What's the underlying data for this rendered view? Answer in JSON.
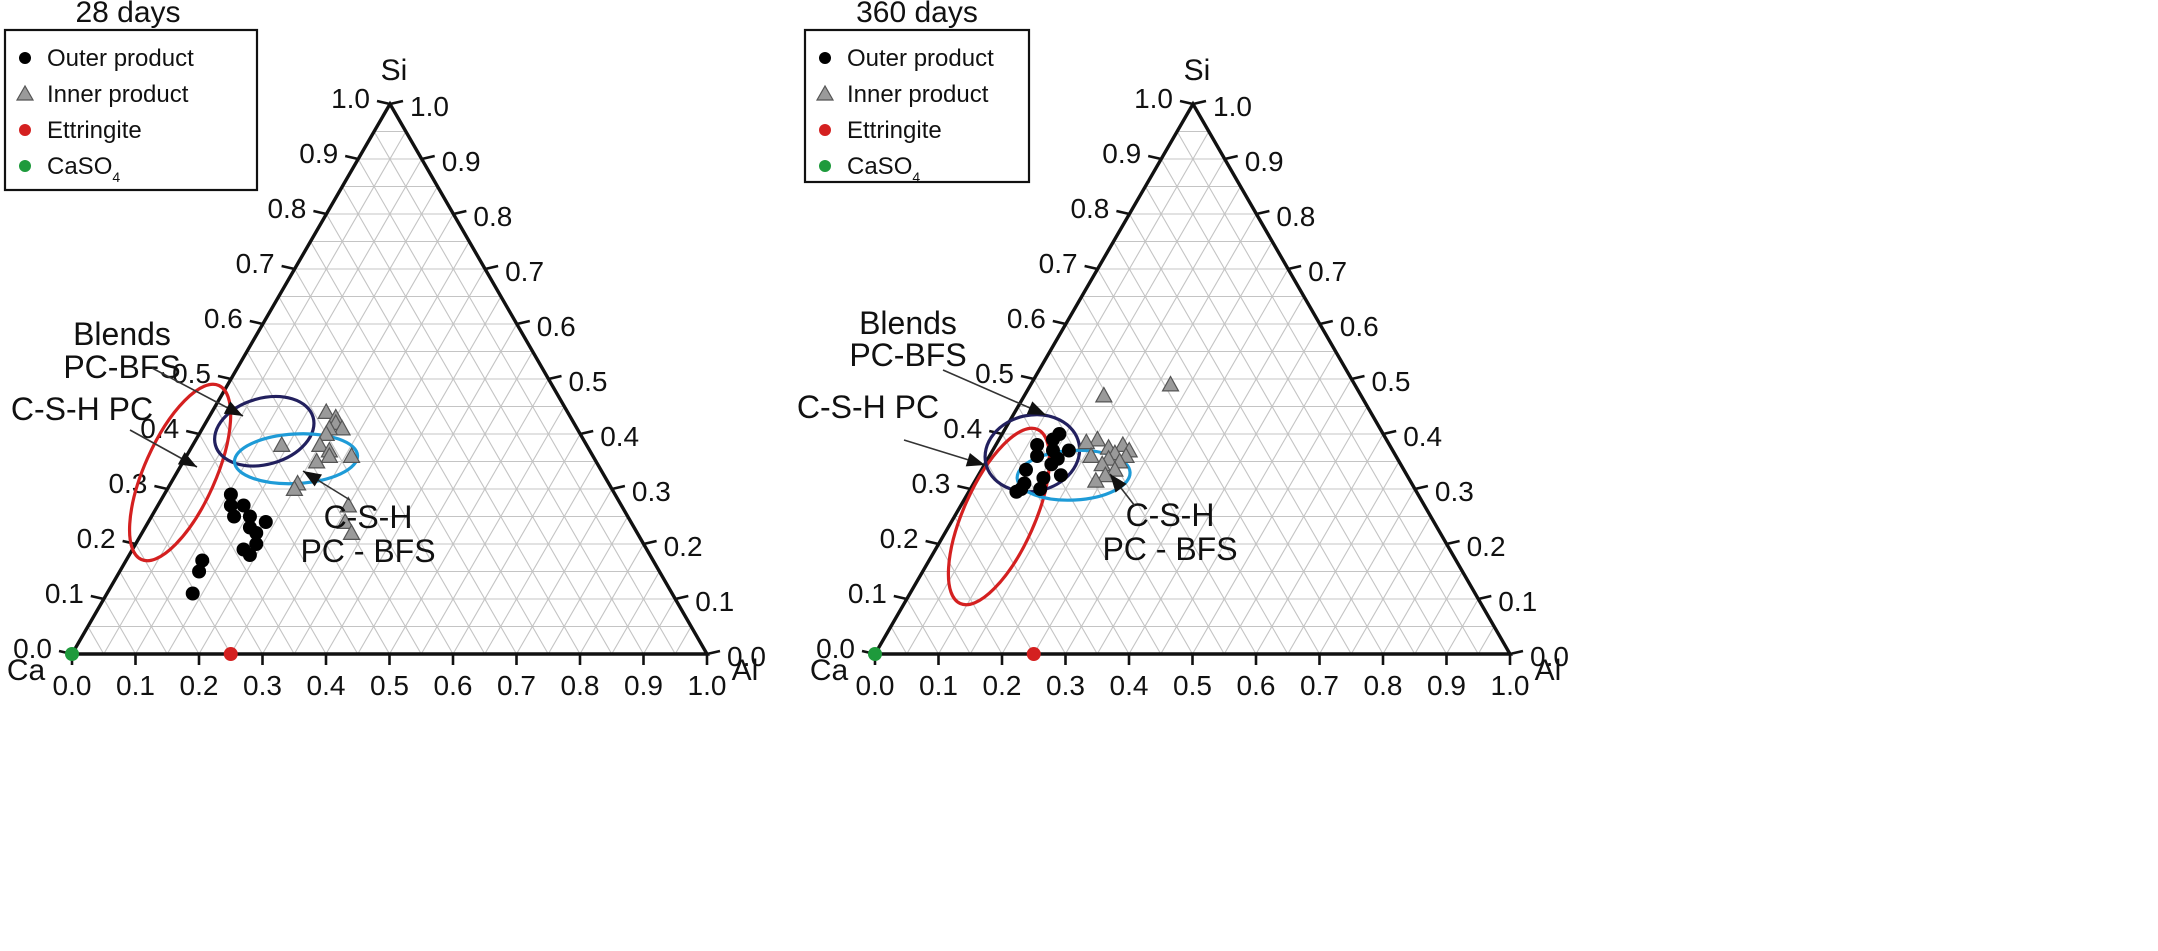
{
  "legend_labels": {
    "outer": "Outer product",
    "inner": "Inner product",
    "ettringite": "Ettringite",
    "caso4_base": "CaSO",
    "caso4_sub": "4"
  },
  "colors": {
    "outer": "#000000",
    "inner": "#9a9a9a",
    "ettringite": "#d42020",
    "caso4": "#1e9a3c",
    "csh_pc_ellipse": "#d42020",
    "blends_ellipse": "#22205e",
    "csh_pcbfs_ellipse": "#1e9bd7",
    "grid": "#c4c4c4"
  },
  "chart_data": [
    {
      "type": "scatter",
      "subtype": "ternary",
      "title": "28 days",
      "vertex_labels": {
        "top": "Si",
        "left": "Ca",
        "right": "Al"
      },
      "ticks": [
        "0.0",
        "0.1",
        "0.2",
        "0.3",
        "0.4",
        "0.5",
        "0.6",
        "0.7",
        "0.8",
        "0.9",
        "1.0"
      ],
      "annotations": {
        "blends_line1": "Blends",
        "blends_line2": "PC-BFS",
        "csh_pc": "C-S-H PC",
        "csh_pcbfs_line1": "C-S-H",
        "csh_pcbfs_line2": "PC - BFS"
      },
      "regions": [
        {
          "name": "C-S-H PC",
          "color_key": "csh_pc_ellipse",
          "center": {
            "si": 0.33,
            "ca": 0.665,
            "al": 0.005
          },
          "rx": 0.056,
          "ry": 0.15,
          "rotate": 24
        },
        {
          "name": "Blends PC-BFS",
          "color_key": "blends_ellipse",
          "center": {
            "si": 0.405,
            "ca": 0.495,
            "al": 0.1
          },
          "rx": 0.08,
          "ry": 0.052,
          "rotate": -16
        },
        {
          "name": "C-S-H PC - BFS",
          "color_key": "csh_pcbfs_ellipse",
          "center": {
            "si": 0.355,
            "ca": 0.47,
            "al": 0.175
          },
          "rx": 0.097,
          "ry": 0.039,
          "rotate": -3
        }
      ],
      "series": [
        {
          "name": "Outer product",
          "marker": "circle",
          "color_key": "outer",
          "points": [
            {
              "si": 0.29,
              "ca": 0.605,
              "al": 0.105
            },
            {
              "si": 0.27,
              "ca": 0.615,
              "al": 0.115
            },
            {
              "si": 0.25,
              "ca": 0.62,
              "al": 0.13
            },
            {
              "si": 0.27,
              "ca": 0.595,
              "al": 0.135
            },
            {
              "si": 0.25,
              "ca": 0.595,
              "al": 0.155
            },
            {
              "si": 0.23,
              "ca": 0.605,
              "al": 0.165
            },
            {
              "si": 0.24,
              "ca": 0.575,
              "al": 0.185
            },
            {
              "si": 0.22,
              "ca": 0.6,
              "al": 0.18
            },
            {
              "si": 0.19,
              "ca": 0.635,
              "al": 0.175
            },
            {
              "si": 0.18,
              "ca": 0.63,
              "al": 0.19
            },
            {
              "si": 0.2,
              "ca": 0.61,
              "al": 0.19
            },
            {
              "si": 0.17,
              "ca": 0.71,
              "al": 0.12
            },
            {
              "si": 0.15,
              "ca": 0.725,
              "al": 0.125
            },
            {
              "si": 0.11,
              "ca": 0.755,
              "al": 0.135
            }
          ]
        },
        {
          "name": "Inner product",
          "marker": "triangle",
          "color_key": "inner",
          "points": [
            {
              "si": 0.44,
              "ca": 0.38,
              "al": 0.18
            },
            {
              "si": 0.43,
              "ca": 0.37,
              "al": 0.2
            },
            {
              "si": 0.42,
              "ca": 0.375,
              "al": 0.205
            },
            {
              "si": 0.41,
              "ca": 0.37,
              "al": 0.22
            },
            {
              "si": 0.41,
              "ca": 0.39,
              "al": 0.2
            },
            {
              "si": 0.4,
              "ca": 0.4,
              "al": 0.2
            },
            {
              "si": 0.38,
              "ca": 0.42,
              "al": 0.2
            },
            {
              "si": 0.37,
              "ca": 0.41,
              "al": 0.22
            },
            {
              "si": 0.36,
              "ca": 0.415,
              "al": 0.225
            },
            {
              "si": 0.38,
              "ca": 0.48,
              "al": 0.14
            },
            {
              "si": 0.35,
              "ca": 0.44,
              "al": 0.21
            },
            {
              "si": 0.36,
              "ca": 0.38,
              "al": 0.26
            },
            {
              "si": 0.31,
              "ca": 0.49,
              "al": 0.2
            },
            {
              "si": 0.3,
              "ca": 0.5,
              "al": 0.2
            },
            {
              "si": 0.27,
              "ca": 0.43,
              "al": 0.3
            },
            {
              "si": 0.24,
              "ca": 0.45,
              "al": 0.31
            },
            {
              "si": 0.22,
              "ca": 0.45,
              "al": 0.33
            }
          ]
        },
        {
          "name": "Ettringite",
          "marker": "circle",
          "color_key": "ettringite",
          "points": [
            {
              "si": 0.0,
              "ca": 0.75,
              "al": 0.25
            }
          ]
        },
        {
          "name": "CaSO4",
          "marker": "circle",
          "color_key": "caso4",
          "points": [
            {
              "si": 0.0,
              "ca": 1.0,
              "al": 0.0
            }
          ]
        }
      ]
    },
    {
      "type": "scatter",
      "subtype": "ternary",
      "title": "360 days",
      "vertex_labels": {
        "top": "Si",
        "left": "Ca",
        "right": "Al"
      },
      "ticks": [
        "0.0",
        "0.1",
        "0.2",
        "0.3",
        "0.4",
        "0.5",
        "0.6",
        "0.7",
        "0.8",
        "0.9",
        "1.0"
      ],
      "annotations": {
        "blends_line1": "Blends",
        "blends_line2": "PC-BFS",
        "csh_pc": "C-S-H PC",
        "csh_pcbfs_line1": "C-S-H",
        "csh_pcbfs_line2": "PC - BFS"
      },
      "regions": [
        {
          "name": "C-S-H PC",
          "color_key": "csh_pc_ellipse",
          "center": {
            "si": 0.25,
            "ca": 0.68,
            "al": 0.07
          },
          "rx": 0.056,
          "ry": 0.15,
          "rotate": 24
        },
        {
          "name": "Blends PC-BFS",
          "color_key": "blends_ellipse",
          "center": {
            "si": 0.365,
            "ca": 0.57,
            "al": 0.065
          },
          "rx": 0.075,
          "ry": 0.06,
          "rotate": -12
        },
        {
          "name": "C-S-H PC - BFS",
          "color_key": "csh_pcbfs_ellipse",
          "center": {
            "si": 0.325,
            "ca": 0.525,
            "al": 0.15
          },
          "rx": 0.089,
          "ry": 0.039,
          "rotate": -3
        }
      ],
      "series": [
        {
          "name": "Outer product",
          "marker": "circle",
          "color_key": "outer",
          "points": [
            {
              "si": 0.4,
              "ca": 0.51,
              "al": 0.09
            },
            {
              "si": 0.39,
              "ca": 0.525,
              "al": 0.085
            },
            {
              "si": 0.38,
              "ca": 0.555,
              "al": 0.065
            },
            {
              "si": 0.37,
              "ca": 0.535,
              "al": 0.095
            },
            {
              "si": 0.37,
              "ca": 0.51,
              "al": 0.12
            },
            {
              "si": 0.36,
              "ca": 0.565,
              "al": 0.075
            },
            {
              "si": 0.355,
              "ca": 0.535,
              "al": 0.11
            },
            {
              "si": 0.345,
              "ca": 0.55,
              "al": 0.105
            },
            {
              "si": 0.335,
              "ca": 0.595,
              "al": 0.07
            },
            {
              "si": 0.325,
              "ca": 0.545,
              "al": 0.13
            },
            {
              "si": 0.32,
              "ca": 0.575,
              "al": 0.105
            },
            {
              "si": 0.31,
              "ca": 0.61,
              "al": 0.08
            },
            {
              "si": 0.3,
              "ca": 0.62,
              "al": 0.08
            },
            {
              "si": 0.295,
              "ca": 0.63,
              "al": 0.075
            },
            {
              "si": 0.3,
              "ca": 0.59,
              "al": 0.11
            }
          ]
        },
        {
          "name": "Inner product",
          "marker": "triangle",
          "color_key": "inner",
          "points": [
            {
              "si": 0.49,
              "ca": 0.29,
              "al": 0.22
            },
            {
              "si": 0.47,
              "ca": 0.405,
              "al": 0.125
            },
            {
              "si": 0.39,
              "ca": 0.455,
              "al": 0.155
            },
            {
              "si": 0.385,
              "ca": 0.475,
              "al": 0.14
            },
            {
              "si": 0.38,
              "ca": 0.42,
              "al": 0.2
            },
            {
              "si": 0.375,
              "ca": 0.445,
              "al": 0.18
            },
            {
              "si": 0.37,
              "ca": 0.415,
              "al": 0.215
            },
            {
              "si": 0.365,
              "ca": 0.44,
              "al": 0.195
            },
            {
              "si": 0.36,
              "ca": 0.48,
              "al": 0.16
            },
            {
              "si": 0.36,
              "ca": 0.425,
              "al": 0.215
            },
            {
              "si": 0.355,
              "ca": 0.455,
              "al": 0.19
            },
            {
              "si": 0.35,
              "ca": 0.44,
              "al": 0.21
            },
            {
              "si": 0.345,
              "ca": 0.47,
              "al": 0.185
            },
            {
              "si": 0.335,
              "ca": 0.455,
              "al": 0.21
            },
            {
              "si": 0.325,
              "ca": 0.475,
              "al": 0.2
            },
            {
              "si": 0.315,
              "ca": 0.495,
              "al": 0.19
            }
          ]
        },
        {
          "name": "Ettringite",
          "marker": "circle",
          "color_key": "ettringite",
          "points": [
            {
              "si": 0.0,
              "ca": 0.75,
              "al": 0.25
            }
          ]
        },
        {
          "name": "CaSO4",
          "marker": "circle",
          "color_key": "caso4",
          "points": [
            {
              "si": 0.0,
              "ca": 1.0,
              "al": 0.0
            }
          ]
        }
      ]
    }
  ]
}
